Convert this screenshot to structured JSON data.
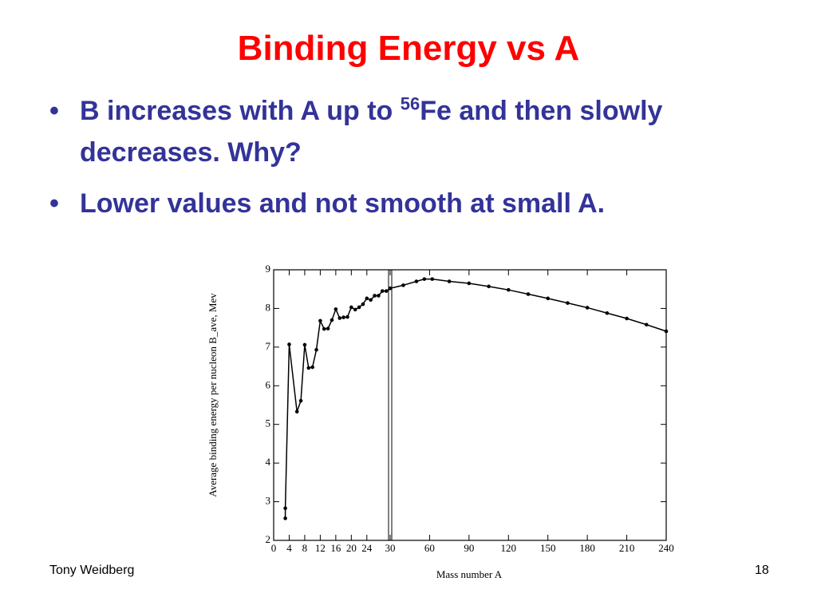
{
  "slide": {
    "title": "Binding Energy vs A",
    "bullets": [
      {
        "text": "B increases with A up to ",
        "sup": "56",
        "rest": "Fe and then slowly decreases. Why?"
      },
      {
        "text": "Lower values and not smooth at small A."
      }
    ],
    "footer_left": "Tony Weidberg",
    "footer_right": "18"
  },
  "chart_data": [
    {
      "type": "line",
      "ylabel": "Average binding energy per nucleon B_ave, Mev",
      "xlim": [
        0,
        30
      ],
      "xticks": [
        0,
        4,
        8,
        12,
        16,
        20,
        24
      ],
      "ylim": [
        2,
        9
      ],
      "yticks": [
        2,
        3,
        4,
        5,
        6,
        7,
        8,
        9
      ],
      "series": [
        {
          "color": "#000000",
          "x": [
            3,
            3,
            4,
            6,
            7,
            8,
            9,
            10,
            11,
            12,
            13,
            14,
            15,
            16,
            17,
            18,
            19,
            20,
            21,
            22,
            23,
            24,
            25,
            26,
            27,
            28,
            29,
            30
          ],
          "values": [
            2.57,
            2.83,
            7.07,
            5.33,
            5.61,
            7.06,
            6.46,
            6.48,
            6.93,
            7.68,
            7.47,
            7.48,
            7.7,
            7.98,
            7.75,
            7.77,
            7.78,
            8.03,
            7.97,
            8.03,
            8.11,
            8.26,
            8.22,
            8.33,
            8.33,
            8.45,
            8.45,
            8.52
          ]
        }
      ]
    },
    {
      "type": "line",
      "xlabel": "Mass number A",
      "xlim": [
        30,
        240
      ],
      "xticks": [
        30,
        60,
        90,
        120,
        150,
        180,
        210,
        240
      ],
      "ylim": [
        2,
        9
      ],
      "series": [
        {
          "color": "#000000",
          "x": [
            30,
            40,
            50,
            56,
            62,
            75,
            90,
            105,
            120,
            135,
            150,
            165,
            180,
            195,
            210,
            225,
            240
          ],
          "values": [
            8.52,
            8.6,
            8.7,
            8.76,
            8.76,
            8.7,
            8.65,
            8.57,
            8.48,
            8.37,
            8.26,
            8.14,
            8.02,
            7.88,
            7.74,
            7.58,
            7.41
          ]
        }
      ]
    }
  ]
}
